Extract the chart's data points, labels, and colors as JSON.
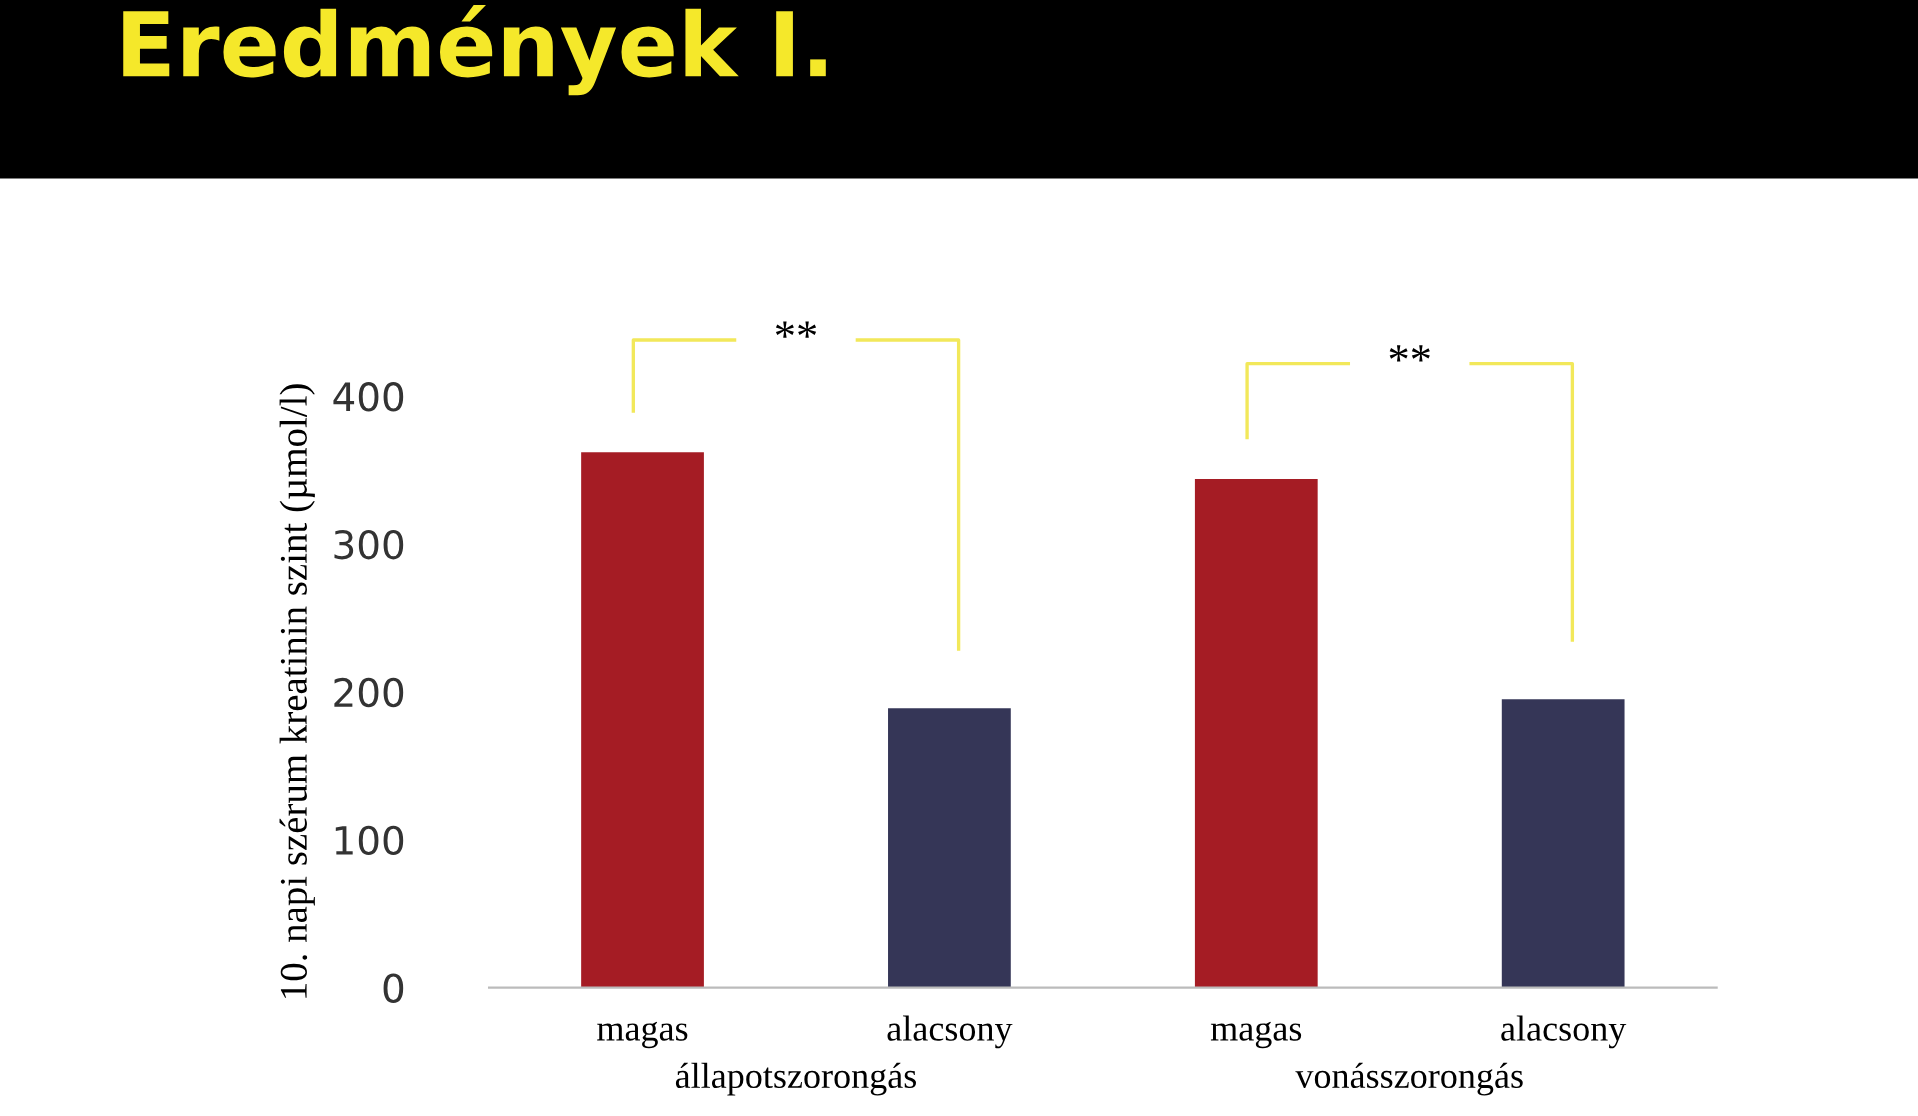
{
  "chart_data": {
    "type": "bar",
    "title": "Eredmények I.",
    "ylabel": "10. napi szérum kreatinin szint (µmol/l)",
    "categories": [
      "magas",
      "alacsony",
      "magas",
      "alacsony"
    ],
    "values": [
      362,
      189,
      344,
      195
    ],
    "colors": [
      "#a51c24",
      "#353657",
      "#a51c24",
      "#353657"
    ],
    "ylim": [
      0,
      400
    ],
    "yticks": [
      0,
      100,
      200,
      300,
      400
    ],
    "grid": false,
    "legend": false,
    "annotations": [
      "**",
      "**",
      "állapotszorongás",
      "vonásszorongás"
    ]
  }
}
